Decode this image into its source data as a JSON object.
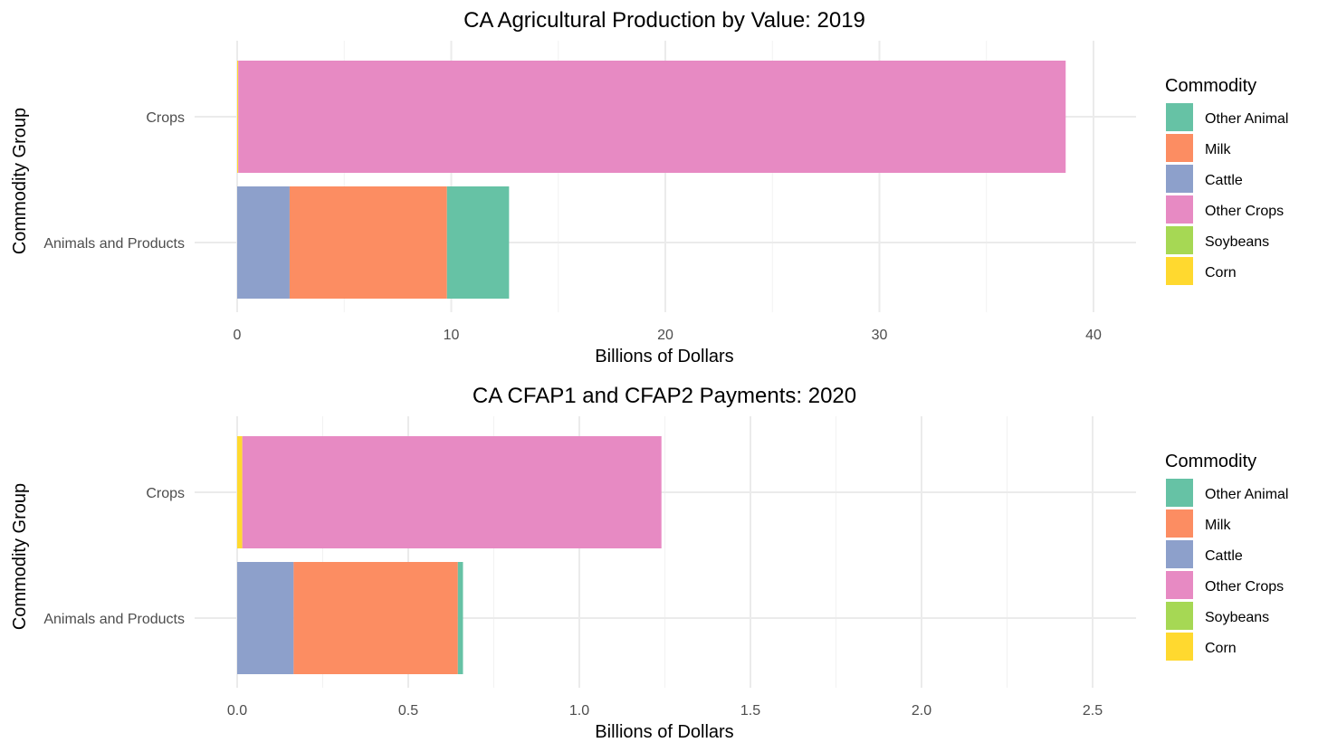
{
  "chart_data": [
    {
      "type": "bar",
      "orientation": "horizontal",
      "stacked": true,
      "title": "CA Agricultural Production by Value: 2019",
      "xlabel": "Billions of Dollars",
      "ylabel": "Commodity Group",
      "xlim": [
        0,
        42
      ],
      "x_ticks": [
        "0",
        "10",
        "20",
        "30",
        "40"
      ],
      "x_tick_values": [
        0,
        10,
        20,
        30,
        40
      ],
      "x_minor_values": [
        5,
        15,
        25,
        35
      ],
      "categories": [
        "Animals and Products",
        "Crops"
      ],
      "series": [
        {
          "name": "Cattle",
          "color": "#8DA0CB",
          "values": [
            2.45,
            0
          ]
        },
        {
          "name": "Milk",
          "color": "#FC8D62",
          "values": [
            7.35,
            0
          ]
        },
        {
          "name": "Other Animal",
          "color": "#66C2A5",
          "values": [
            2.9,
            0
          ]
        },
        {
          "name": "Corn",
          "color": "#FFD92F",
          "values": [
            0,
            0.05
          ]
        },
        {
          "name": "Soybeans",
          "color": "#A6D854",
          "values": [
            0,
            0.0
          ]
        },
        {
          "name": "Other Crops",
          "color": "#E78AC3",
          "values": [
            0,
            38.65
          ]
        }
      ],
      "legend": {
        "title": "Commodity",
        "position": "right",
        "items": [
          {
            "label": "Other Animal",
            "color": "#66C2A5"
          },
          {
            "label": "Milk",
            "color": "#FC8D62"
          },
          {
            "label": "Cattle",
            "color": "#8DA0CB"
          },
          {
            "label": "Other Crops",
            "color": "#E78AC3"
          },
          {
            "label": "Soybeans",
            "color": "#A6D854"
          },
          {
            "label": "Corn",
            "color": "#FFD92F"
          }
        ]
      },
      "grid": true
    },
    {
      "type": "bar",
      "orientation": "horizontal",
      "stacked": true,
      "title": "CA CFAP1 and CFAP2 Payments: 2020",
      "xlabel": "Billions of Dollars",
      "ylabel": "Commodity Group",
      "xlim": [
        0,
        2.63
      ],
      "x_ticks": [
        "0.0",
        "0.5",
        "1.0",
        "1.5",
        "2.0",
        "2.5"
      ],
      "x_tick_values": [
        0,
        0.5,
        1.0,
        1.5,
        2.0,
        2.5
      ],
      "x_minor_values": [
        0.25,
        0.75,
        1.25,
        1.75,
        2.25
      ],
      "categories": [
        "Animals and Products",
        "Crops"
      ],
      "series": [
        {
          "name": "Cattle",
          "color": "#8DA0CB",
          "values": [
            0.165,
            0
          ]
        },
        {
          "name": "Milk",
          "color": "#FC8D62",
          "values": [
            0.48,
            0
          ]
        },
        {
          "name": "Other Animal",
          "color": "#66C2A5",
          "values": [
            0.015,
            0
          ]
        },
        {
          "name": "Corn",
          "color": "#FFD92F",
          "values": [
            0,
            0.015
          ]
        },
        {
          "name": "Soybeans",
          "color": "#A6D854",
          "values": [
            0,
            0.0
          ]
        },
        {
          "name": "Other Crops",
          "color": "#E78AC3",
          "values": [
            0,
            1.225
          ]
        }
      ],
      "legend": {
        "title": "Commodity",
        "position": "right",
        "items": [
          {
            "label": "Other Animal",
            "color": "#66C2A5"
          },
          {
            "label": "Milk",
            "color": "#FC8D62"
          },
          {
            "label": "Cattle",
            "color": "#8DA0CB"
          },
          {
            "label": "Other Crops",
            "color": "#E78AC3"
          },
          {
            "label": "Soybeans",
            "color": "#A6D854"
          },
          {
            "label": "Corn",
            "color": "#FFD92F"
          }
        ]
      },
      "grid": true
    }
  ]
}
